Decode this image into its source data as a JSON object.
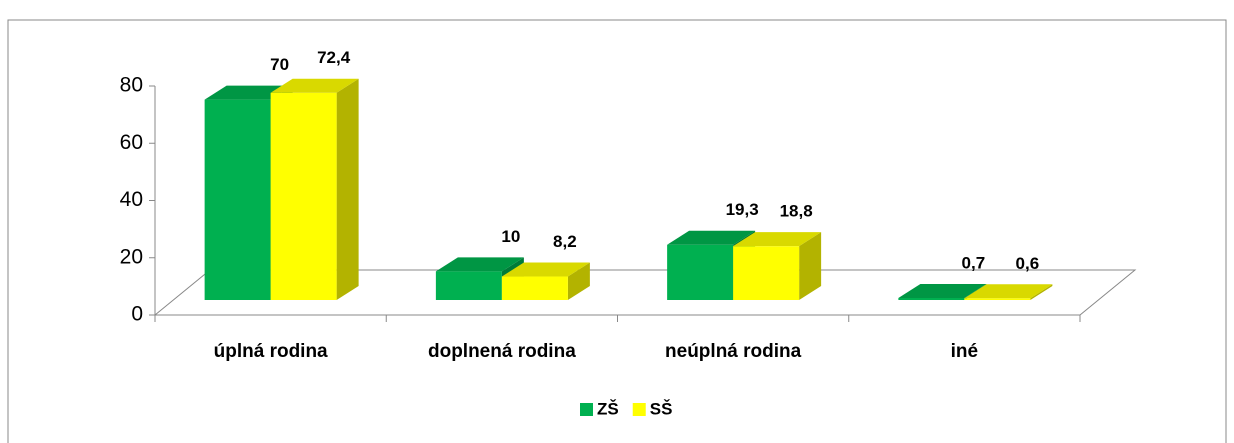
{
  "chart_data": {
    "type": "bar3d",
    "categories": [
      "úplná rodina",
      "doplnená  rodina",
      "neúplná rodina",
      "iné"
    ],
    "series": [
      {
        "name": "ZŠ",
        "color": "#00b050",
        "values": [
          70,
          10,
          19.3,
          0.7
        ],
        "value_labels": [
          "70",
          "10",
          "19,3",
          "0,7"
        ]
      },
      {
        "name": "SŠ",
        "color": "#ffff00",
        "values": [
          72.4,
          8.2,
          18.8,
          0.6
        ],
        "value_labels": [
          "72,4",
          "8,2",
          "18,8",
          "0,6"
        ]
      }
    ],
    "ylim": [
      0,
      80
    ],
    "yticks": [
      0,
      20,
      40,
      60,
      80
    ],
    "legend": "bottom"
  }
}
